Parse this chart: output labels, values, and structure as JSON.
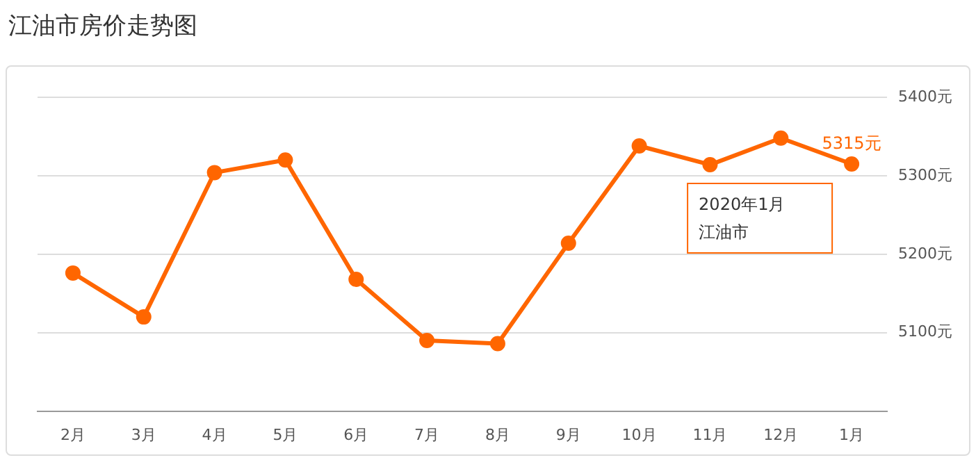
{
  "chart_data": {
    "type": "line",
    "title": "江油市房价走势图",
    "categories": [
      "2月",
      "3月",
      "4月",
      "5月",
      "6月",
      "7月",
      "8月",
      "9月",
      "10月",
      "11月",
      "12月",
      "1月"
    ],
    "series": [
      {
        "name": "江油市",
        "color": "#ff6600",
        "values": [
          5176,
          5120,
          5304,
          5320,
          5168,
          5090,
          5086,
          5214,
          5338,
          5314,
          5348,
          5315
        ],
        "value_labels": [
          null,
          null,
          null,
          null,
          null,
          null,
          null,
          null,
          null,
          null,
          null,
          "5315元"
        ]
      }
    ],
    "ylim": [
      5000,
      5400
    ],
    "yticks": [
      {
        "value": 5000,
        "label": null
      },
      {
        "value": 5100,
        "label": "5100元"
      },
      {
        "value": 5200,
        "label": "5200元"
      },
      {
        "value": 5300,
        "label": "5300元"
      },
      {
        "value": 5400,
        "label": "5400元"
      }
    ],
    "annotations": [
      "2020年1月"
    ],
    "grid": "y",
    "legend": false,
    "marker": "circle",
    "line_style": "solid"
  }
}
